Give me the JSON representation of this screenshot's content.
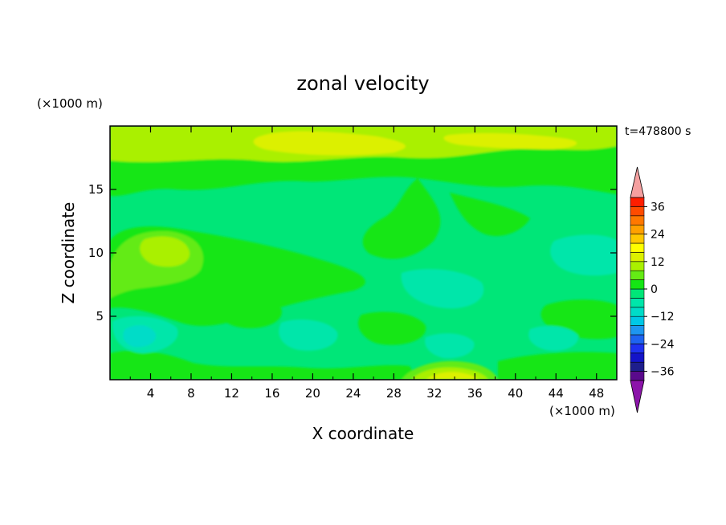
{
  "chart_data": {
    "type": "heatmap",
    "title": "zonal velocity",
    "xlabel": "X coordinate",
    "ylabel": "Z coordinate",
    "x_unit": "(×1000 m)",
    "y_unit": "(×1000 m)",
    "time_label": "t=478800 s",
    "xlim": [
      0,
      50
    ],
    "ylim": [
      0,
      20
    ],
    "x_ticks": [
      4,
      8,
      12,
      16,
      20,
      24,
      28,
      32,
      36,
      40,
      44,
      48
    ],
    "y_ticks": [
      5,
      10,
      15
    ],
    "colorbar": {
      "levels": [
        -40,
        -36,
        -32,
        -28,
        -24,
        -20,
        -16,
        -12,
        -8,
        -4,
        0,
        4,
        8,
        12,
        16,
        20,
        24,
        28,
        32,
        36,
        40
      ],
      "tick_values": [
        -36,
        -24,
        -12,
        0,
        12,
        24,
        36
      ],
      "tick_labels": [
        "−36",
        "−24",
        "−12",
        "0",
        "12",
        "24",
        "36"
      ],
      "colors": [
        "#5a0a8c",
        "#1e1e8c",
        "#1414c8",
        "#1e32f0",
        "#1e64f0",
        "#1e96f0",
        "#00c8e6",
        "#00dcc8",
        "#00e6aa",
        "#00e678",
        "#14e614",
        "#64eb14",
        "#aaf000",
        "#dcf000",
        "#ffff00",
        "#ffc800",
        "#ffa000",
        "#ff7800",
        "#ff4b00",
        "#ff1e00"
      ],
      "over_color": "#f5a0a0",
      "under_color": "#8c14aa"
    },
    "field_description_values": {
      "background_range": [
        -8,
        4
      ],
      "upper_band_max": 10,
      "left_blob_max": 10,
      "bottom_blob_max": 16
    },
    "grid": false,
    "legend": "right"
  }
}
